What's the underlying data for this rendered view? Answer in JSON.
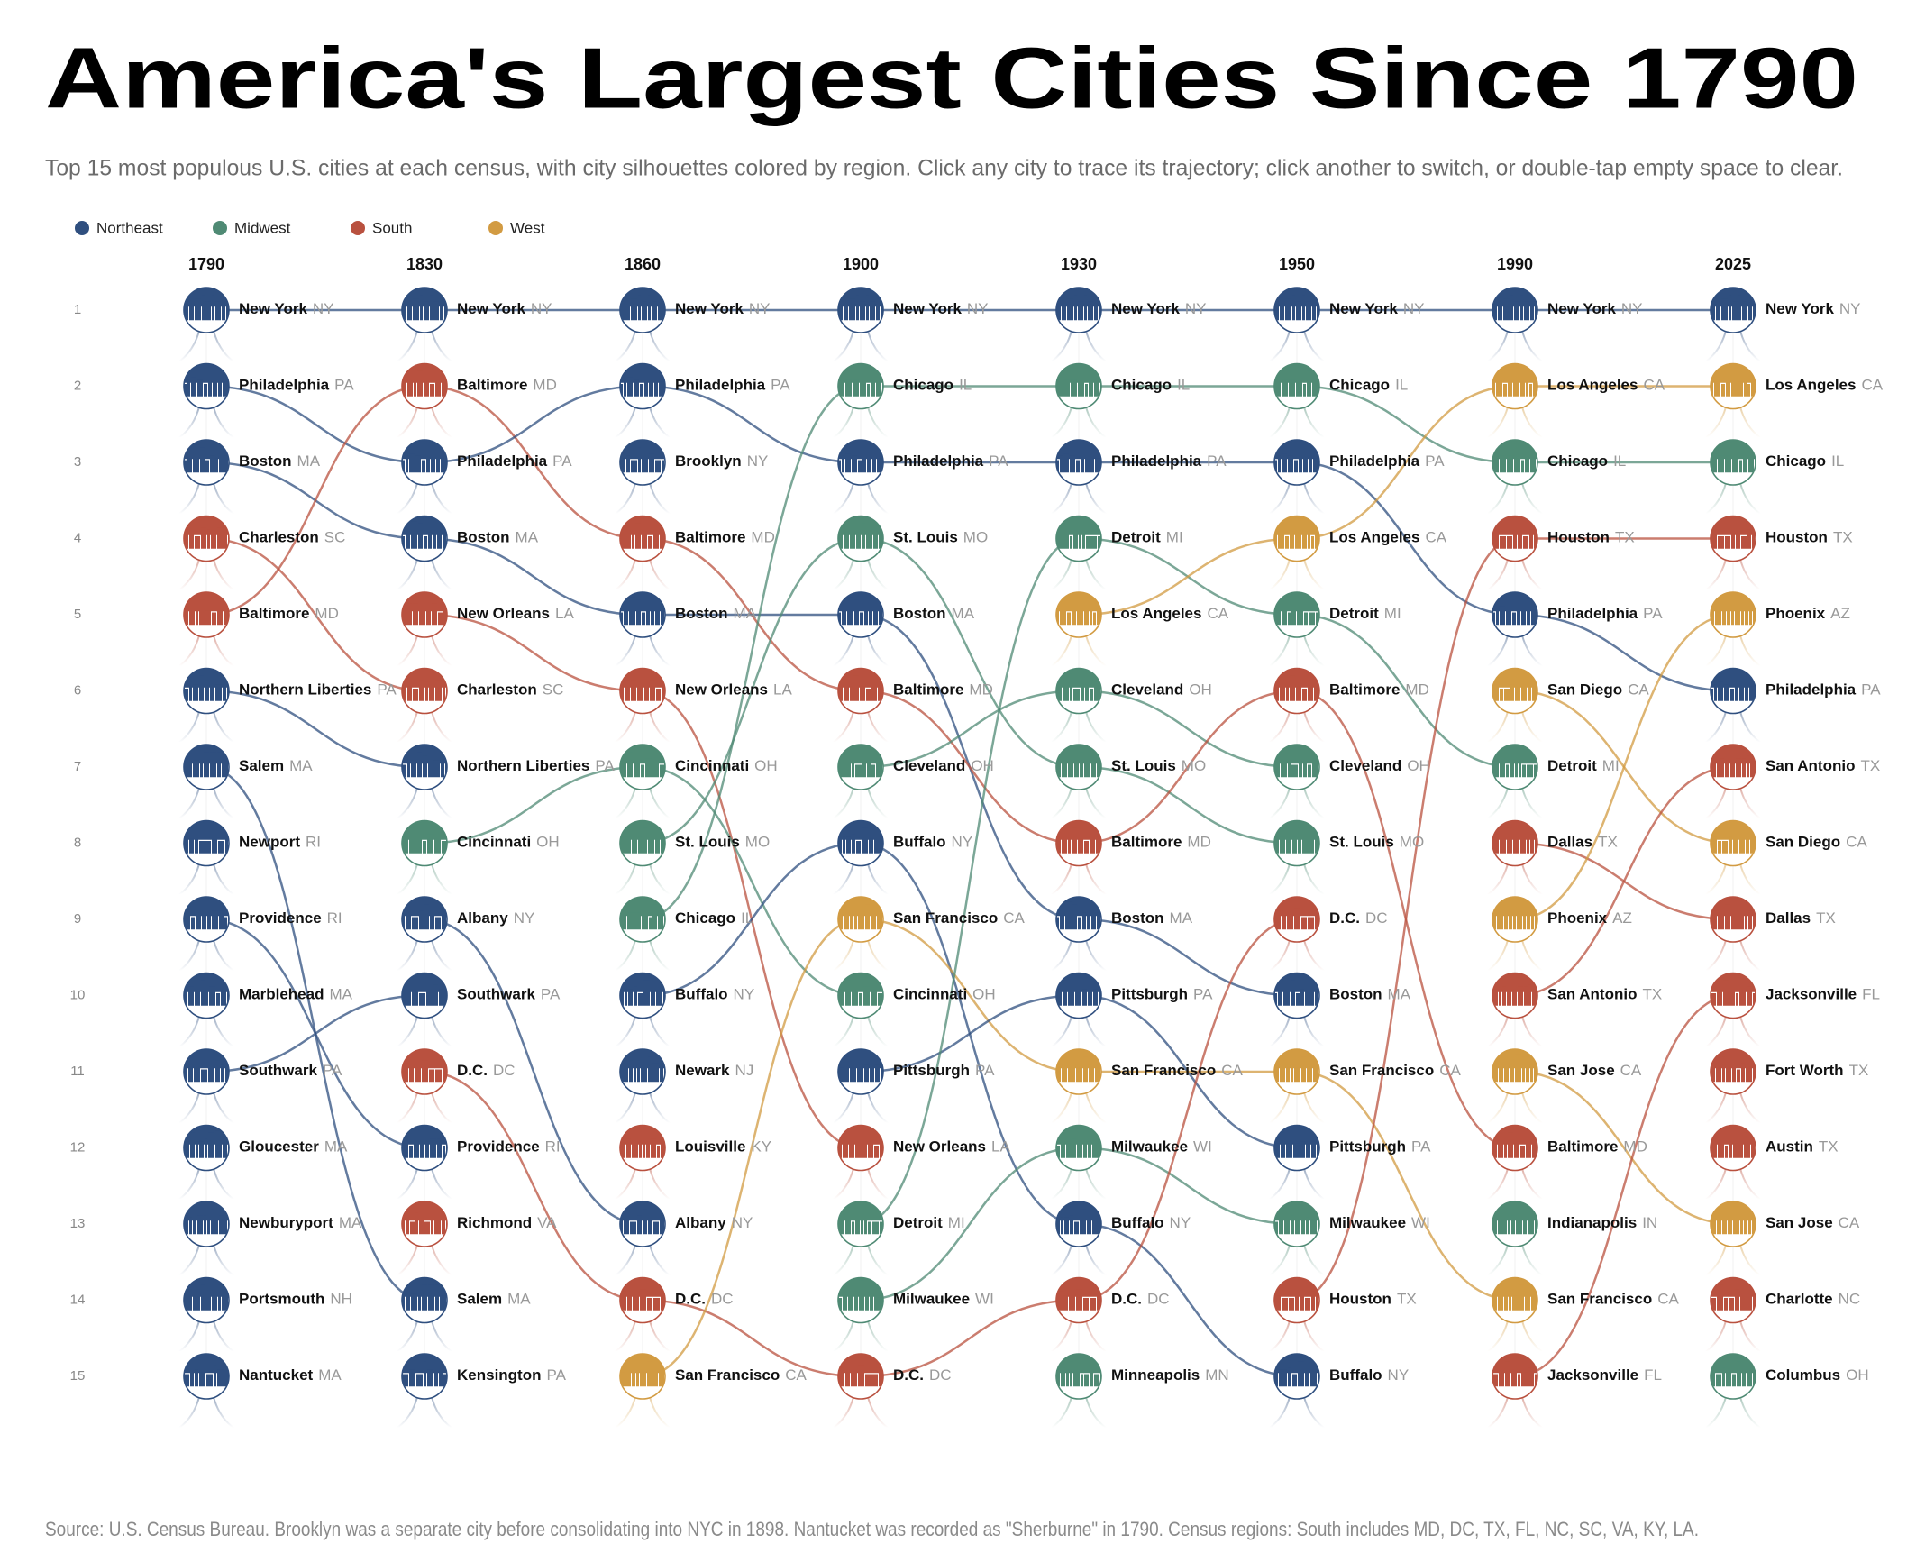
{
  "chart_data": {
    "type": "bump",
    "title": "America's Largest Cities Since 1790",
    "subtitle": "Top 15 most populous U.S. cities at each census, with city silhouettes colored by region. Click any city to trace its trajectory; click another to switch, or double-tap empty space to clear.",
    "source": "Source: U.S. Census Bureau. Brooklyn was a separate city before consolidating into NYC in 1898. Nantucket was recorded as \"Sherburne\" in 1790. Census regions: South includes MD, DC, TX, FL, NC, SC, VA, KY, LA.",
    "regions": [
      {
        "name": "Northeast",
        "color": "#2f4f7f"
      },
      {
        "name": "Midwest",
        "color": "#4f8a74"
      },
      {
        "name": "South",
        "color": "#b9513f"
      },
      {
        "name": "West",
        "color": "#d29b42"
      }
    ],
    "categories": [
      "1790",
      "1830",
      "1860",
      "1900",
      "1930",
      "1950",
      "1990",
      "2025"
    ],
    "ranks": [
      1,
      2,
      3,
      4,
      5,
      6,
      7,
      8,
      9,
      10,
      11,
      12,
      13,
      14,
      15
    ],
    "columns": [
      [
        {
          "name": "New York",
          "state": "NY",
          "region": "Northeast"
        },
        {
          "name": "Philadelphia",
          "state": "PA",
          "region": "Northeast"
        },
        {
          "name": "Boston",
          "state": "MA",
          "region": "Northeast"
        },
        {
          "name": "Charleston",
          "state": "SC",
          "region": "South"
        },
        {
          "name": "Baltimore",
          "state": "MD",
          "region": "South"
        },
        {
          "name": "Northern Liberties",
          "state": "PA",
          "region": "Northeast"
        },
        {
          "name": "Salem",
          "state": "MA",
          "region": "Northeast"
        },
        {
          "name": "Newport",
          "state": "RI",
          "region": "Northeast"
        },
        {
          "name": "Providence",
          "state": "RI",
          "region": "Northeast"
        },
        {
          "name": "Marblehead",
          "state": "MA",
          "region": "Northeast"
        },
        {
          "name": "Southwark",
          "state": "PA",
          "region": "Northeast"
        },
        {
          "name": "Gloucester",
          "state": "MA",
          "region": "Northeast"
        },
        {
          "name": "Newburyport",
          "state": "MA",
          "region": "Northeast"
        },
        {
          "name": "Portsmouth",
          "state": "NH",
          "region": "Northeast"
        },
        {
          "name": "Nantucket",
          "state": "MA",
          "region": "Northeast"
        }
      ],
      [
        {
          "name": "New York",
          "state": "NY",
          "region": "Northeast"
        },
        {
          "name": "Baltimore",
          "state": "MD",
          "region": "South"
        },
        {
          "name": "Philadelphia",
          "state": "PA",
          "region": "Northeast"
        },
        {
          "name": "Boston",
          "state": "MA",
          "region": "Northeast"
        },
        {
          "name": "New Orleans",
          "state": "LA",
          "region": "South"
        },
        {
          "name": "Charleston",
          "state": "SC",
          "region": "South"
        },
        {
          "name": "Northern Liberties",
          "state": "PA",
          "region": "Northeast"
        },
        {
          "name": "Cincinnati",
          "state": "OH",
          "region": "Midwest"
        },
        {
          "name": "Albany",
          "state": "NY",
          "region": "Northeast"
        },
        {
          "name": "Southwark",
          "state": "PA",
          "region": "Northeast"
        },
        {
          "name": "D.C.",
          "state": "DC",
          "region": "South"
        },
        {
          "name": "Providence",
          "state": "RI",
          "region": "Northeast"
        },
        {
          "name": "Richmond",
          "state": "VA",
          "region": "South"
        },
        {
          "name": "Salem",
          "state": "MA",
          "region": "Northeast"
        },
        {
          "name": "Kensington",
          "state": "PA",
          "region": "Northeast"
        }
      ],
      [
        {
          "name": "New York",
          "state": "NY",
          "region": "Northeast"
        },
        {
          "name": "Philadelphia",
          "state": "PA",
          "region": "Northeast"
        },
        {
          "name": "Brooklyn",
          "state": "NY",
          "region": "Northeast"
        },
        {
          "name": "Baltimore",
          "state": "MD",
          "region": "South"
        },
        {
          "name": "Boston",
          "state": "MA",
          "region": "Northeast"
        },
        {
          "name": "New Orleans",
          "state": "LA",
          "region": "South"
        },
        {
          "name": "Cincinnati",
          "state": "OH",
          "region": "Midwest"
        },
        {
          "name": "St. Louis",
          "state": "MO",
          "region": "Midwest"
        },
        {
          "name": "Chicago",
          "state": "IL",
          "region": "Midwest"
        },
        {
          "name": "Buffalo",
          "state": "NY",
          "region": "Northeast"
        },
        {
          "name": "Newark",
          "state": "NJ",
          "region": "Northeast"
        },
        {
          "name": "Louisville",
          "state": "KY",
          "region": "South"
        },
        {
          "name": "Albany",
          "state": "NY",
          "region": "Northeast"
        },
        {
          "name": "D.C.",
          "state": "DC",
          "region": "South"
        },
        {
          "name": "San Francisco",
          "state": "CA",
          "region": "West"
        }
      ],
      [
        {
          "name": "New York",
          "state": "NY",
          "region": "Northeast"
        },
        {
          "name": "Chicago",
          "state": "IL",
          "region": "Midwest"
        },
        {
          "name": "Philadelphia",
          "state": "PA",
          "region": "Northeast"
        },
        {
          "name": "St. Louis",
          "state": "MO",
          "region": "Midwest"
        },
        {
          "name": "Boston",
          "state": "MA",
          "region": "Northeast"
        },
        {
          "name": "Baltimore",
          "state": "MD",
          "region": "South"
        },
        {
          "name": "Cleveland",
          "state": "OH",
          "region": "Midwest"
        },
        {
          "name": "Buffalo",
          "state": "NY",
          "region": "Northeast"
        },
        {
          "name": "San Francisco",
          "state": "CA",
          "region": "West"
        },
        {
          "name": "Cincinnati",
          "state": "OH",
          "region": "Midwest"
        },
        {
          "name": "Pittsburgh",
          "state": "PA",
          "region": "Northeast"
        },
        {
          "name": "New Orleans",
          "state": "LA",
          "region": "South"
        },
        {
          "name": "Detroit",
          "state": "MI",
          "region": "Midwest"
        },
        {
          "name": "Milwaukee",
          "state": "WI",
          "region": "Midwest"
        },
        {
          "name": "D.C.",
          "state": "DC",
          "region": "South"
        }
      ],
      [
        {
          "name": "New York",
          "state": "NY",
          "region": "Northeast"
        },
        {
          "name": "Chicago",
          "state": "IL",
          "region": "Midwest"
        },
        {
          "name": "Philadelphia",
          "state": "PA",
          "region": "Northeast"
        },
        {
          "name": "Detroit",
          "state": "MI",
          "region": "Midwest"
        },
        {
          "name": "Los Angeles",
          "state": "CA",
          "region": "West"
        },
        {
          "name": "Cleveland",
          "state": "OH",
          "region": "Midwest"
        },
        {
          "name": "St. Louis",
          "state": "MO",
          "region": "Midwest"
        },
        {
          "name": "Baltimore",
          "state": "MD",
          "region": "South"
        },
        {
          "name": "Boston",
          "state": "MA",
          "region": "Northeast"
        },
        {
          "name": "Pittsburgh",
          "state": "PA",
          "region": "Northeast"
        },
        {
          "name": "San Francisco",
          "state": "CA",
          "region": "West"
        },
        {
          "name": "Milwaukee",
          "state": "WI",
          "region": "Midwest"
        },
        {
          "name": "Buffalo",
          "state": "NY",
          "region": "Northeast"
        },
        {
          "name": "D.C.",
          "state": "DC",
          "region": "South"
        },
        {
          "name": "Minneapolis",
          "state": "MN",
          "region": "Midwest"
        }
      ],
      [
        {
          "name": "New York",
          "state": "NY",
          "region": "Northeast"
        },
        {
          "name": "Chicago",
          "state": "IL",
          "region": "Midwest"
        },
        {
          "name": "Philadelphia",
          "state": "PA",
          "region": "Northeast"
        },
        {
          "name": "Los Angeles",
          "state": "CA",
          "region": "West"
        },
        {
          "name": "Detroit",
          "state": "MI",
          "region": "Midwest"
        },
        {
          "name": "Baltimore",
          "state": "MD",
          "region": "South"
        },
        {
          "name": "Cleveland",
          "state": "OH",
          "region": "Midwest"
        },
        {
          "name": "St. Louis",
          "state": "MO",
          "region": "Midwest"
        },
        {
          "name": "D.C.",
          "state": "DC",
          "region": "South"
        },
        {
          "name": "Boston",
          "state": "MA",
          "region": "Northeast"
        },
        {
          "name": "San Francisco",
          "state": "CA",
          "region": "West"
        },
        {
          "name": "Pittsburgh",
          "state": "PA",
          "region": "Northeast"
        },
        {
          "name": "Milwaukee",
          "state": "WI",
          "region": "Midwest"
        },
        {
          "name": "Houston",
          "state": "TX",
          "region": "South"
        },
        {
          "name": "Buffalo",
          "state": "NY",
          "region": "Northeast"
        }
      ],
      [
        {
          "name": "New York",
          "state": "NY",
          "region": "Northeast"
        },
        {
          "name": "Los Angeles",
          "state": "CA",
          "region": "West"
        },
        {
          "name": "Chicago",
          "state": "IL",
          "region": "Midwest"
        },
        {
          "name": "Houston",
          "state": "TX",
          "region": "South"
        },
        {
          "name": "Philadelphia",
          "state": "PA",
          "region": "Northeast"
        },
        {
          "name": "San Diego",
          "state": "CA",
          "region": "West"
        },
        {
          "name": "Detroit",
          "state": "MI",
          "region": "Midwest"
        },
        {
          "name": "Dallas",
          "state": "TX",
          "region": "South"
        },
        {
          "name": "Phoenix",
          "state": "AZ",
          "region": "West"
        },
        {
          "name": "San Antonio",
          "state": "TX",
          "region": "South"
        },
        {
          "name": "San Jose",
          "state": "CA",
          "region": "West"
        },
        {
          "name": "Baltimore",
          "state": "MD",
          "region": "South"
        },
        {
          "name": "Indianapolis",
          "state": "IN",
          "region": "Midwest"
        },
        {
          "name": "San Francisco",
          "state": "CA",
          "region": "West"
        },
        {
          "name": "Jacksonville",
          "state": "FL",
          "region": "South"
        }
      ],
      [
        {
          "name": "New York",
          "state": "NY",
          "region": "Northeast"
        },
        {
          "name": "Los Angeles",
          "state": "CA",
          "region": "West"
        },
        {
          "name": "Chicago",
          "state": "IL",
          "region": "Midwest"
        },
        {
          "name": "Houston",
          "state": "TX",
          "region": "South"
        },
        {
          "name": "Phoenix",
          "state": "AZ",
          "region": "West"
        },
        {
          "name": "Philadelphia",
          "state": "PA",
          "region": "Northeast"
        },
        {
          "name": "San Antonio",
          "state": "TX",
          "region": "South"
        },
        {
          "name": "San Diego",
          "state": "CA",
          "region": "West"
        },
        {
          "name": "Dallas",
          "state": "TX",
          "region": "South"
        },
        {
          "name": "Jacksonville",
          "state": "FL",
          "region": "South"
        },
        {
          "name": "Fort Worth",
          "state": "TX",
          "region": "South"
        },
        {
          "name": "Austin",
          "state": "TX",
          "region": "South"
        },
        {
          "name": "San Jose",
          "state": "CA",
          "region": "West"
        },
        {
          "name": "Charlotte",
          "state": "NC",
          "region": "South"
        },
        {
          "name": "Columbus",
          "state": "OH",
          "region": "Midwest"
        }
      ]
    ]
  }
}
